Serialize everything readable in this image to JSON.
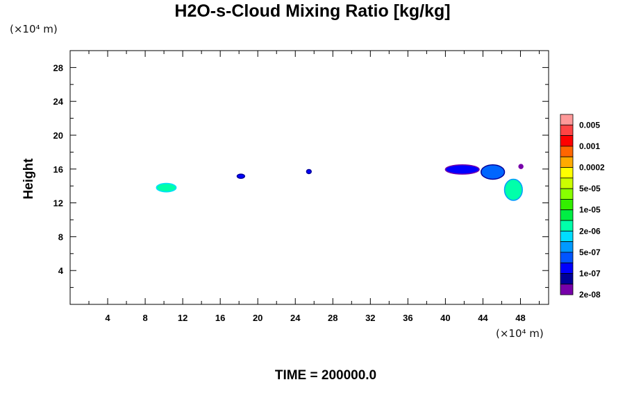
{
  "title": "H2O-s-Cloud Mixing Ratio [kg/kg]",
  "y_unit": "(×10⁴ m)",
  "x_unit": "(×10⁴ m)",
  "ylabel": "Height",
  "time_label": "TIME = 200000.0",
  "chart_data": {
    "type": "heatmap",
    "title": "H2O-s-Cloud Mixing Ratio [kg/kg]",
    "xlabel": "",
    "ylabel": "Height",
    "x_unit": "(×10⁴ m)",
    "y_unit": "(×10⁴ m)",
    "xlim": [
      0,
      51
    ],
    "ylim": [
      0,
      30
    ],
    "x_ticks": [
      4,
      8,
      12,
      16,
      20,
      24,
      28,
      32,
      36,
      40,
      44,
      48
    ],
    "y_ticks": [
      4,
      8,
      12,
      16,
      20,
      24,
      28
    ],
    "colorbar": {
      "labels": [
        "0.005",
        "0.001",
        "0.0002",
        "5e-05",
        "1e-05",
        "2e-06",
        "5e-07",
        "1e-07",
        "2e-08"
      ],
      "colors": [
        "#ff9999",
        "#ff4444",
        "#ff0000",
        "#ff6600",
        "#ffaa00",
        "#ffff00",
        "#ccff00",
        "#88ff00",
        "#33ee00",
        "#00ee44",
        "#00ffaa",
        "#00ddff",
        "#0099ff",
        "#0055ff",
        "#0000ff",
        "#000099",
        "#7700aa"
      ]
    },
    "regions": [
      {
        "x": [
          9.2,
          11.3
        ],
        "y": [
          13.3,
          14.3
        ],
        "level": "2e-06",
        "color": "#00ffaa",
        "edge": "#00ddff"
      },
      {
        "x": [
          17.8,
          18.6
        ],
        "y": [
          14.9,
          15.4
        ],
        "level": "1e-07",
        "color": "#0000ff",
        "edge": "#000099"
      },
      {
        "x": [
          25.2,
          25.7
        ],
        "y": [
          15.5,
          15.9
        ],
        "level": "1e-07",
        "color": "#0000ff",
        "edge": "#000099"
      },
      {
        "x": [
          40.0,
          43.6
        ],
        "y": [
          15.4,
          16.5
        ],
        "level": "2e-08",
        "color": "#0000ff",
        "edge": "#7700aa"
      },
      {
        "x": [
          43.8,
          46.3
        ],
        "y": [
          14.8,
          16.5
        ],
        "level": "1e-07",
        "color": "#0066ff",
        "edge": "#000099"
      },
      {
        "x": [
          47.9,
          48.2
        ],
        "y": [
          16.1,
          16.5
        ],
        "level": "2e-08",
        "color": "#7700aa",
        "edge": "#7700aa"
      },
      {
        "x": [
          46.3,
          48.2
        ],
        "y": [
          12.3,
          14.8
        ],
        "level": "2e-06",
        "color": "#00ffaa",
        "edge": "#0099ff"
      }
    ],
    "time": "200000.0"
  }
}
